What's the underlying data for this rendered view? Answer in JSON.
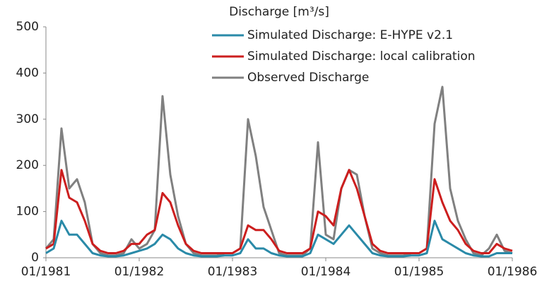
{
  "chart_data": {
    "type": "line",
    "title": "Discharge [m³/s]",
    "x": [
      "01/1981",
      "02/1981",
      "03/1981",
      "04/1981",
      "05/1981",
      "06/1981",
      "07/1981",
      "08/1981",
      "09/1981",
      "10/1981",
      "11/1981",
      "12/1981",
      "01/1982",
      "02/1982",
      "03/1982",
      "04/1982",
      "05/1982",
      "06/1982",
      "07/1982",
      "08/1982",
      "09/1982",
      "10/1982",
      "11/1982",
      "12/1982",
      "01/1983",
      "02/1983",
      "03/1983",
      "04/1983",
      "05/1983",
      "06/1983",
      "07/1983",
      "08/1983",
      "09/1983",
      "10/1983",
      "11/1983",
      "12/1983",
      "01/1984",
      "02/1984",
      "03/1984",
      "04/1984",
      "05/1984",
      "06/1984",
      "07/1984",
      "08/1984",
      "09/1984",
      "10/1984",
      "11/1984",
      "12/1984",
      "01/1985",
      "02/1985",
      "03/1985",
      "04/1985",
      "05/1985",
      "06/1985",
      "07/1985",
      "08/1985",
      "09/1985",
      "10/1985",
      "11/1985",
      "12/1985",
      "01/1986"
    ],
    "series": [
      {
        "name": "Simulated Discharge: E-HYPE v2.1",
        "color": "#2a8aa8",
        "values": [
          10,
          20,
          80,
          50,
          50,
          30,
          10,
          5,
          3,
          3,
          5,
          10,
          15,
          20,
          30,
          50,
          40,
          20,
          10,
          5,
          3,
          3,
          3,
          5,
          5,
          10,
          40,
          20,
          20,
          10,
          5,
          3,
          3,
          3,
          10,
          50,
          40,
          30,
          50,
          70,
          50,
          30,
          10,
          5,
          3,
          3,
          3,
          5,
          5,
          10,
          80,
          40,
          30,
          20,
          10,
          5,
          3,
          3,
          10,
          10,
          10
        ]
      },
      {
        "name": "Simulated Discharge: local calibration",
        "color": "#cc1e1e",
        "values": [
          20,
          30,
          190,
          130,
          120,
          80,
          30,
          15,
          10,
          10,
          15,
          30,
          30,
          50,
          60,
          140,
          120,
          70,
          30,
          15,
          10,
          10,
          10,
          10,
          10,
          20,
          70,
          60,
          60,
          40,
          15,
          10,
          10,
          10,
          20,
          100,
          90,
          70,
          150,
          190,
          150,
          90,
          30,
          15,
          10,
          10,
          10,
          10,
          10,
          20,
          170,
          120,
          80,
          60,
          30,
          15,
          10,
          10,
          30,
          20,
          15
        ]
      },
      {
        "name": "Observed Discharge",
        "color": "#808080",
        "values": [
          20,
          40,
          280,
          150,
          170,
          120,
          30,
          10,
          5,
          5,
          10,
          40,
          20,
          30,
          60,
          350,
          180,
          90,
          30,
          10,
          5,
          5,
          5,
          10,
          10,
          20,
          300,
          220,
          110,
          60,
          10,
          5,
          5,
          5,
          20,
          250,
          50,
          40,
          150,
          190,
          180,
          90,
          20,
          10,
          5,
          5,
          5,
          10,
          10,
          20,
          290,
          370,
          150,
          80,
          40,
          10,
          5,
          20,
          50,
          15,
          10
        ]
      }
    ],
    "xticks": [
      "01/1981",
      "01/1982",
      "01/1983",
      "01/1984",
      "01/1985",
      "01/1986"
    ],
    "ylim": [
      0,
      500
    ],
    "yticks": [
      0,
      100,
      200,
      300,
      400,
      500
    ],
    "grid": false,
    "legend": "top-right"
  }
}
